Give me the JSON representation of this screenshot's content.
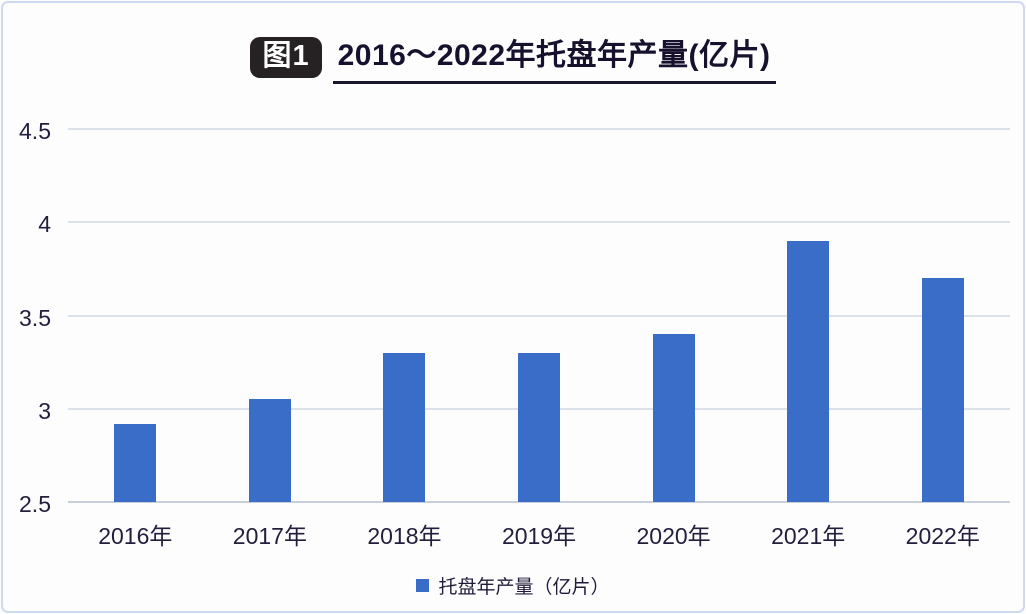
{
  "figure": {
    "badge": "图1",
    "title": "2016～2022年托盘年产量(亿片)"
  },
  "legend": {
    "label": "托盘年产量（亿片）"
  },
  "colors": {
    "bar": "#3a6dc7",
    "title_text": "#17112e",
    "tick_text": "#241d3c",
    "gridline": "#dde1ea",
    "badge_bg": "#262223"
  },
  "chart_data": {
    "type": "bar",
    "title": "2016～2022年托盘年产量(亿片)",
    "categories": [
      "2016年",
      "2017年",
      "2018年",
      "2019年",
      "2020年",
      "2021年",
      "2022年"
    ],
    "values": [
      2.92,
      3.05,
      3.3,
      3.3,
      3.4,
      3.9,
      3.7
    ],
    "series_name": "托盘年产量（亿片）",
    "xlabel": "",
    "ylabel": "",
    "ylim": [
      2.5,
      4.5
    ],
    "yticks": [
      2.5,
      3,
      3.5,
      4,
      4.5
    ],
    "grid": true,
    "legend_position": "bottom",
    "bar_color": "#3a6dc7"
  }
}
